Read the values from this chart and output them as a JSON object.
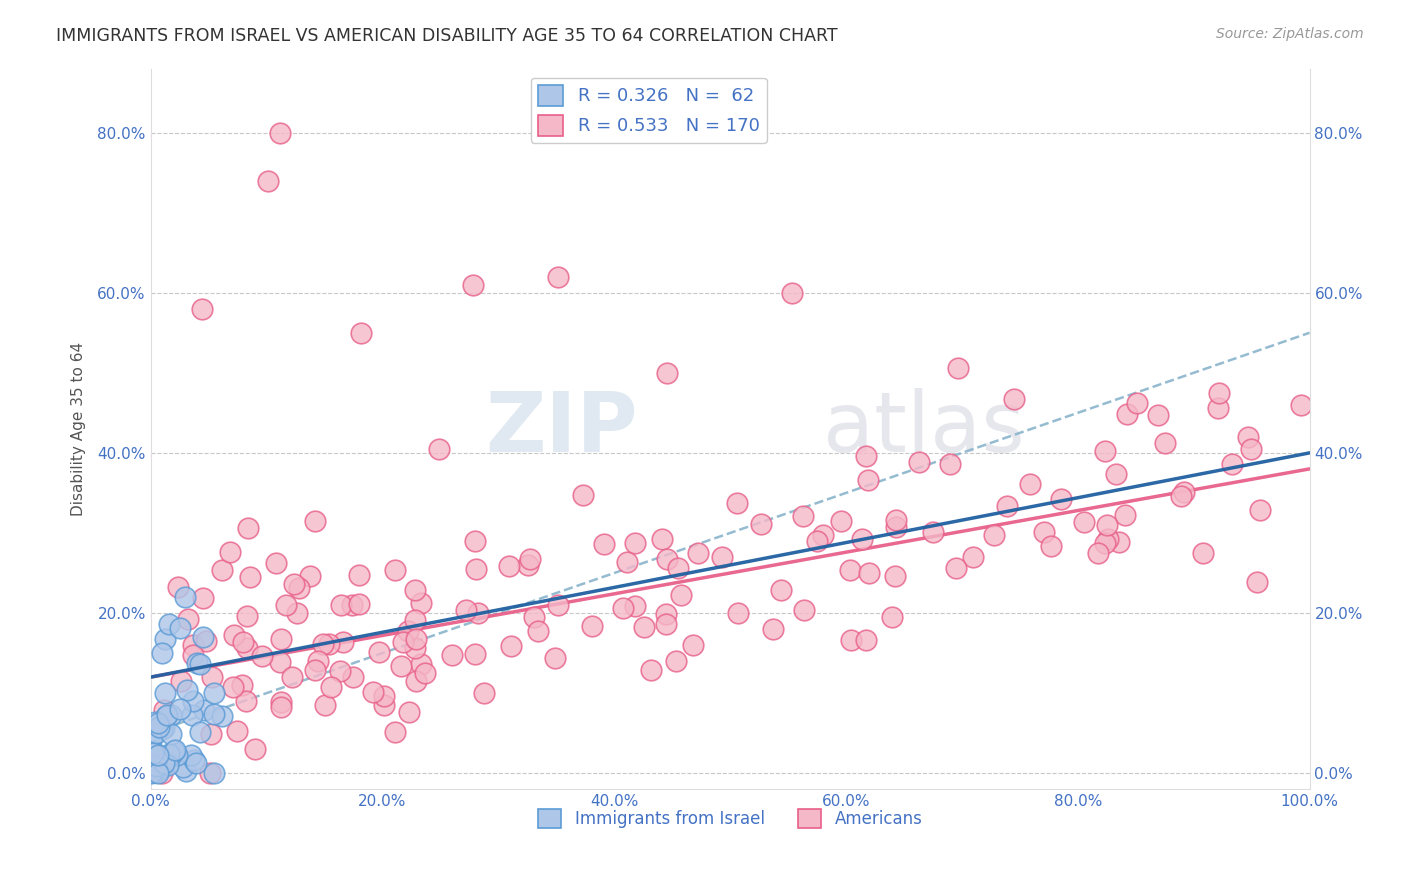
{
  "title": "IMMIGRANTS FROM ISRAEL VS AMERICAN DISABILITY AGE 35 TO 64 CORRELATION CHART",
  "source": "Source: ZipAtlas.com",
  "ylabel": "Disability Age 35 to 64",
  "watermark_zip": "ZIP",
  "watermark_atlas": "atlas",
  "legend_israel_r": "0.326",
  "legend_israel_n": "62",
  "legend_american_r": "0.533",
  "legend_american_n": "170",
  "xlim": [
    0.0,
    1.0
  ],
  "ylim": [
    -0.02,
    0.88
  ],
  "xticks": [
    0.0,
    0.2,
    0.4,
    0.6,
    0.8,
    1.0
  ],
  "yticks": [
    0.0,
    0.2,
    0.4,
    0.6,
    0.8
  ],
  "xtick_labels": [
    "0.0%",
    "20.0%",
    "40.0%",
    "60.0%",
    "80.0%",
    "100.0%"
  ],
  "ytick_labels": [
    "0.0%",
    "20.0%",
    "40.0%",
    "60.0%",
    "80.0%"
  ],
  "israel_fill": "#aec6e8",
  "israel_edge": "#5b9bd5",
  "american_fill": "#f4b8c8",
  "american_edge": "#e8608a",
  "israel_line_color": "#2060a0",
  "american_line_color": "#e8608a",
  "dash_line_color": "#8ab4cc",
  "background_color": "#ffffff",
  "grid_color": "#c8c8c8",
  "title_color": "#333333",
  "tick_color": "#4472c4",
  "source_color": "#999999",
  "israel_line_intercept": 0.12,
  "israel_line_slope": 0.28,
  "american_line_intercept": 0.12,
  "american_line_slope": 0.26,
  "dash_line_intercept": 0.05,
  "dash_line_slope": 0.5
}
